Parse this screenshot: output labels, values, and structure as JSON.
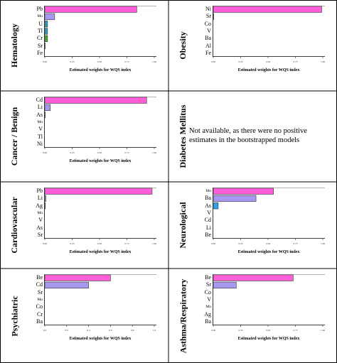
{
  "colors": {
    "pink": "#ff5fd7",
    "lavender": "#a899f0",
    "teal": "#2aa1b6",
    "green": "#4aa833",
    "blue": "#2f9fe8",
    "frame": "#000000"
  },
  "xaxis_title": "Estimated weights for WQS index",
  "diabetes_note": [
    "Not available, as there were no positive",
    "estimates in the bootstrapped models"
  ],
  "chart_data": [
    {
      "type": "bar",
      "orientation": "horizontal",
      "domain": "Hematology",
      "categories": [
        "Pb",
        "Mn",
        "U",
        "Tl",
        "Cr",
        "Sr",
        "Fe"
      ],
      "values": [
        0.84,
        0.09,
        0.025,
        0.025,
        0.025,
        0.004,
        0.0
      ],
      "colors": [
        "pink",
        "lavender",
        "teal",
        "teal",
        "green",
        "",
        ""
      ],
      "xticks": [
        "0.00",
        "0.25",
        "0.50",
        "0.75",
        "1.00"
      ],
      "xlim": [
        0,
        1
      ],
      "xlabel": "Estimated weights for WQS index"
    },
    {
      "type": "bar",
      "orientation": "horizontal",
      "domain": "Obesity",
      "categories": [
        "Ni",
        "Sr",
        "Co",
        "V",
        "Ba",
        "Al",
        "Fe"
      ],
      "values": [
        0.99,
        0.004,
        0.0,
        0.0,
        0.0,
        0.0,
        0.0
      ],
      "colors": [
        "pink",
        "",
        "",
        "",
        "",
        "",
        ""
      ],
      "xticks": [
        "0.00",
        "0.25",
        "0.50",
        "0.75",
        "1.00"
      ],
      "xlim": [
        0,
        1
      ],
      "xlabel": "Estimated weights for WQS index"
    },
    {
      "type": "bar",
      "orientation": "horizontal",
      "domain": "Cancer / Benign",
      "categories": [
        "Cd",
        "Li",
        "As",
        "Mo",
        "V",
        "Tl",
        "Ni"
      ],
      "values": [
        0.93,
        0.05,
        0.004,
        0.0,
        0.0,
        0.0,
        0.0
      ],
      "colors": [
        "pink",
        "lavender",
        "",
        "",
        "",
        "",
        ""
      ],
      "xticks": [
        "0.00",
        "0.25",
        "0.50",
        "0.75",
        "1.00"
      ],
      "xlim": [
        0,
        1
      ],
      "xlabel": "Estimated weights for WQS index"
    },
    {
      "type": "none",
      "domain": "Diabetes Mellitus"
    },
    {
      "type": "bar",
      "orientation": "horizontal",
      "domain": "Cardiovascular",
      "categories": [
        "Pb",
        "Li",
        "Ag",
        "Mn",
        "V",
        "As",
        "Sr"
      ],
      "values": [
        0.98,
        0.01,
        0.005,
        0.0,
        0.0,
        0.0,
        0.0
      ],
      "colors": [
        "pink",
        "lavender",
        "",
        "",
        "",
        "",
        ""
      ],
      "xticks": [
        "0.00",
        "0.25",
        "0.50",
        "0.75",
        "1.00"
      ],
      "xlim": [
        0,
        1
      ],
      "xlabel": "Estimated weights for WQS index"
    },
    {
      "type": "bar",
      "orientation": "horizontal",
      "domain": "Neurological",
      "categories": [
        "Mn",
        "Ba",
        "As",
        "V",
        "Cd",
        "Li",
        "Be"
      ],
      "values": [
        0.55,
        0.39,
        0.045,
        0.0,
        0.0,
        0.0,
        0.0
      ],
      "colors": [
        "pink",
        "lavender",
        "blue",
        "",
        "",
        "",
        ""
      ],
      "xticks": [
        "0.00",
        "0.25",
        "0.50",
        "0.75",
        "1.00"
      ],
      "xlim": [
        0,
        1
      ],
      "xlabel": "Estimated weights for WQS index"
    },
    {
      "type": "bar",
      "orientation": "horizontal",
      "domain": "Psychiatric",
      "categories": [
        "Be",
        "Cd",
        "Sr",
        "Mo",
        "Co",
        "Cr",
        "Ba"
      ],
      "values": [
        0.6,
        0.4,
        0.0,
        0.0,
        0.0,
        0.0,
        0.0
      ],
      "colors": [
        "pink",
        "lavender",
        "",
        "",
        "",
        "",
        ""
      ],
      "xticks": [
        "0.0",
        "0.2",
        "0.4",
        "0.6",
        "0.8",
        "1.0"
      ],
      "xlim": [
        0,
        1
      ],
      "xlabel": "Estimated weights for WQS index"
    },
    {
      "type": "bar",
      "orientation": "horizontal",
      "domain": "Asthma/Respiratory",
      "categories": [
        "Be",
        "Sr",
        "Co",
        "V",
        "Mn",
        "Ag",
        "Ba"
      ],
      "values": [
        0.73,
        0.21,
        0.0,
        0.0,
        0.0,
        0.0,
        0.0
      ],
      "colors": [
        "pink",
        "lavender",
        "",
        "",
        "",
        "",
        ""
      ],
      "xticks": [
        "0.00",
        "0.25",
        "0.50",
        "0.75",
        "1.00"
      ],
      "xlim": [
        0,
        1
      ],
      "xlabel": "Estimated weights for WQS index"
    }
  ]
}
